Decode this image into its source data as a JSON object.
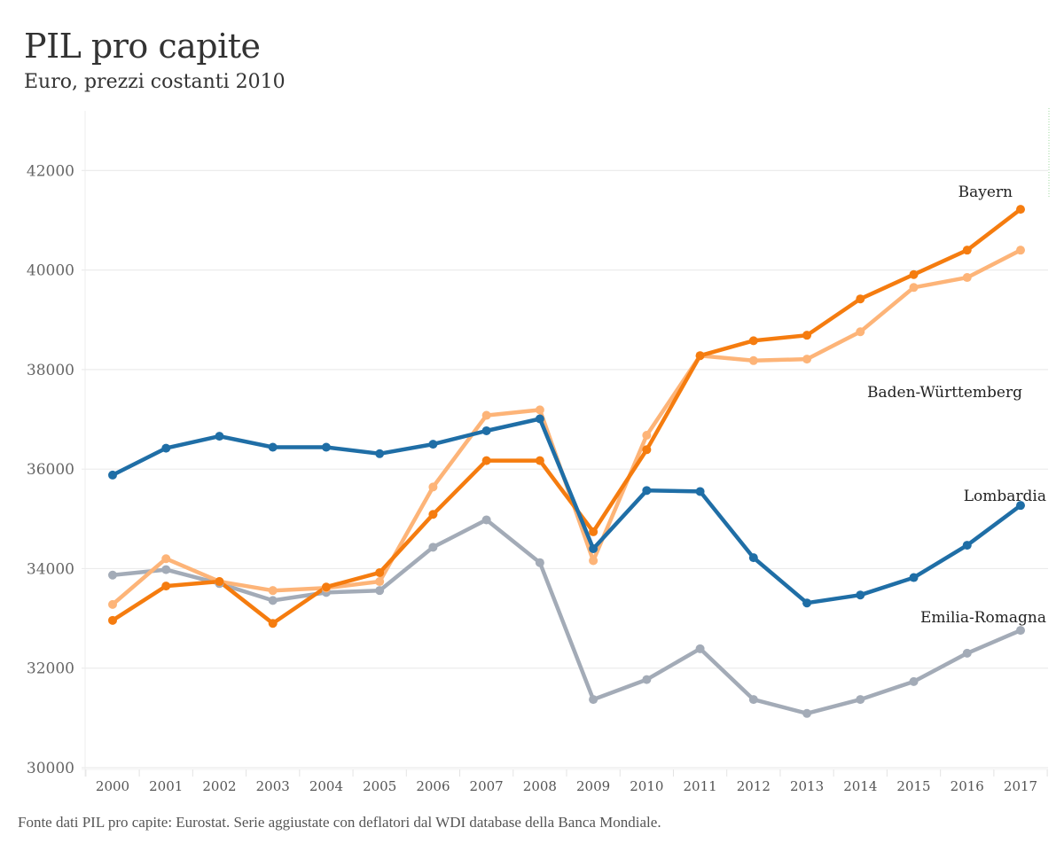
{
  "header": {
    "title": "PIL pro capite",
    "subtitle": "Euro, prezzi costanti 2010"
  },
  "footer": {
    "source": "Fonte dati PIL pro capite: Eurostat. Serie aggiustate con deflatori dal WDI database della Banca Mondiale."
  },
  "chart_data": {
    "type": "line",
    "title": "PIL pro capite",
    "subtitle": "Euro, prezzi costanti 2010",
    "xlabel": "",
    "ylabel": "",
    "x": [
      2000,
      2001,
      2002,
      2003,
      2004,
      2005,
      2006,
      2007,
      2008,
      2009,
      2010,
      2011,
      2012,
      2013,
      2014,
      2015,
      2016,
      2017
    ],
    "x_tick_labels": [
      "2000",
      "2001",
      "2002",
      "2003",
      "2004",
      "2005",
      "2006",
      "2007",
      "2008",
      "2009",
      "2010",
      "2011",
      "2012",
      "2013",
      "2014",
      "2015",
      "2016",
      "2017"
    ],
    "ylim": [
      30000,
      43200
    ],
    "y_ticks": [
      30000,
      32000,
      34000,
      36000,
      38000,
      40000,
      42000
    ],
    "y_tick_labels": [
      "30000",
      "32000",
      "34000",
      "36000",
      "38000",
      "40000",
      "42000"
    ],
    "grid": true,
    "legend": "direct-labels-right",
    "series": [
      {
        "name": "Bayern",
        "color": "#f57c0f",
        "values": [
          32960,
          33650,
          33740,
          32900,
          33630,
          33920,
          35090,
          36170,
          36170,
          34740,
          36390,
          38280,
          38580,
          38690,
          39420,
          39910,
          40400,
          41220
        ]
      },
      {
        "name": "Baden-Württemberg",
        "color": "#fdb478",
        "values": [
          33280,
          34200,
          33740,
          33560,
          33610,
          33740,
          35640,
          37080,
          37190,
          34160,
          36680,
          38280,
          38180,
          38210,
          38760,
          39650,
          39850,
          40400
        ]
      },
      {
        "name": "Lombardia",
        "color": "#1f6ea6",
        "values": [
          35880,
          36420,
          36660,
          36440,
          36440,
          36310,
          36500,
          36770,
          37010,
          34400,
          35570,
          35550,
          34220,
          33310,
          33470,
          33820,
          34470,
          35270
        ]
      },
      {
        "name": "Emilia-Romagna",
        "color": "#a3abb7",
        "values": [
          33870,
          33980,
          33700,
          33360,
          33520,
          33560,
          34430,
          34980,
          34120,
          31370,
          31770,
          32390,
          31370,
          31090,
          31370,
          31730,
          32300,
          32760
        ]
      }
    ]
  }
}
